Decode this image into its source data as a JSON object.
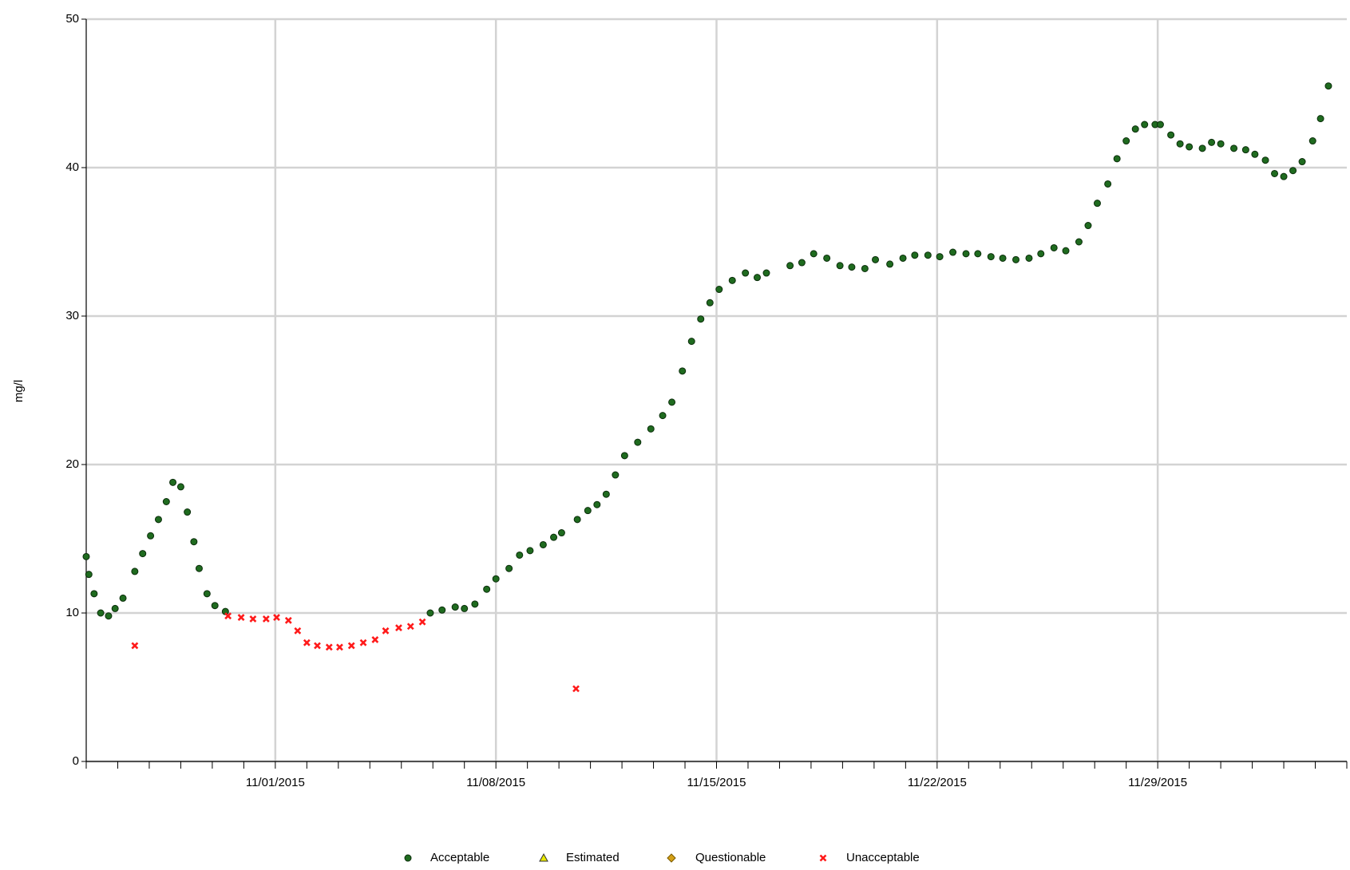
{
  "chart_data": {
    "type": "scatter",
    "y_label": "mg/l",
    "xlim": [
      "2015-10-26T00:00",
      "2015-12-05T00:00"
    ],
    "xticks": [
      {
        "value": "2015-11-01T00:00",
        "label": "11/01/2015"
      },
      {
        "value": "2015-11-08T00:00",
        "label": "11/08/2015"
      },
      {
        "value": "2015-11-15T00:00",
        "label": "11/15/2015"
      },
      {
        "value": "2015-11-22T00:00",
        "label": "11/22/2015"
      },
      {
        "value": "2015-11-29T00:00",
        "label": "11/29/2015"
      }
    ],
    "ylim": [
      0,
      50
    ],
    "yticks": [
      0,
      10,
      20,
      30,
      40,
      50
    ],
    "grid": true,
    "legend": "bottom",
    "series": [
      {
        "name": "Acceptable",
        "color": "#1f6b1f",
        "marker": "circle",
        "x": [
          "2015-10-26T00:00",
          "2015-10-26T02:00",
          "2015-10-26T06:00",
          "2015-10-26T11:00",
          "2015-10-26T17:00",
          "2015-10-26T22:00",
          "2015-10-27T04:00",
          "2015-10-27T13:00",
          "2015-10-27T19:00",
          "2015-10-28T01:00",
          "2015-10-28T07:00",
          "2015-10-28T13:00",
          "2015-10-28T18:00",
          "2015-10-29T00:00",
          "2015-10-29T05:00",
          "2015-10-29T10:00",
          "2015-10-29T14:00",
          "2015-10-29T20:00",
          "2015-10-30T02:00",
          "2015-10-30T10:00",
          "2015-11-05T22:00",
          "2015-11-06T07:00",
          "2015-11-06T17:00",
          "2015-11-07T00:00",
          "2015-11-07T08:00",
          "2015-11-07T17:00",
          "2015-11-08T00:00",
          "2015-11-08T10:00",
          "2015-11-08T18:00",
          "2015-11-09T02:00",
          "2015-11-09T12:00",
          "2015-11-09T20:00",
          "2015-11-10T02:00",
          "2015-11-10T14:00",
          "2015-11-10T22:00",
          "2015-11-11T05:00",
          "2015-11-11T12:00",
          "2015-11-11T19:00",
          "2015-11-12T02:00",
          "2015-11-12T12:00",
          "2015-11-12T22:00",
          "2015-11-13T07:00",
          "2015-11-13T14:00",
          "2015-11-13T22:00",
          "2015-11-14T05:00",
          "2015-11-14T12:00",
          "2015-11-14T19:00",
          "2015-11-15T02:00",
          "2015-11-15T12:00",
          "2015-11-15T22:00",
          "2015-11-16T07:00",
          "2015-11-16T14:00",
          "2015-11-17T08:00",
          "2015-11-17T17:00",
          "2015-11-18T02:00",
          "2015-11-18T12:00",
          "2015-11-18T22:00",
          "2015-11-19T07:00",
          "2015-11-19T17:00",
          "2015-11-20T01:00",
          "2015-11-20T12:00",
          "2015-11-20T22:00",
          "2015-11-21T07:00",
          "2015-11-21T17:00",
          "2015-11-22T02:00",
          "2015-11-22T12:00",
          "2015-11-22T22:00",
          "2015-11-23T07:00",
          "2015-11-23T17:00",
          "2015-11-24T02:00",
          "2015-11-24T12:00",
          "2015-11-24T22:00",
          "2015-11-25T07:00",
          "2015-11-25T17:00",
          "2015-11-26T02:00",
          "2015-11-26T12:00",
          "2015-11-26T19:00",
          "2015-11-27T02:00",
          "2015-11-27T10:00",
          "2015-11-27T17:00",
          "2015-11-28T00:00",
          "2015-11-28T07:00",
          "2015-11-28T14:00",
          "2015-11-28T22:00",
          "2015-11-29T02:00",
          "2015-11-29T10:00",
          "2015-11-29T17:00",
          "2015-11-30T00:00",
          "2015-11-30T10:00",
          "2015-11-30T17:00",
          "2015-12-01T00:00",
          "2015-12-01T10:00",
          "2015-12-01T19:00",
          "2015-12-02T02:00",
          "2015-12-02T10:00",
          "2015-12-02T17:00",
          "2015-12-03T00:00",
          "2015-12-03T07:00",
          "2015-12-03T14:00",
          "2015-12-03T22:00",
          "2015-12-04T04:00",
          "2015-12-04T10:00"
        ],
        "values": [
          13.8,
          12.6,
          11.3,
          10.0,
          9.8,
          10.3,
          11.0,
          12.8,
          14.0,
          15.2,
          16.3,
          17.5,
          18.8,
          18.5,
          16.8,
          14.8,
          13.0,
          11.3,
          10.5,
          10.1,
          10.0,
          10.2,
          10.4,
          10.3,
          10.6,
          11.6,
          12.3,
          13.0,
          13.9,
          14.2,
          14.6,
          15.1,
          15.4,
          16.3,
          16.9,
          17.3,
          18.0,
          19.3,
          20.6,
          21.5,
          22.4,
          23.3,
          24.2,
          26.3,
          28.3,
          29.8,
          30.9,
          31.8,
          32.4,
          32.9,
          32.6,
          32.9,
          33.4,
          33.6,
          34.2,
          33.9,
          33.4,
          33.3,
          33.2,
          33.8,
          33.5,
          33.9,
          34.1,
          34.1,
          34.0,
          34.3,
          34.2,
          34.2,
          34.0,
          33.9,
          33.8,
          33.9,
          34.2,
          34.6,
          34.4,
          35.0,
          36.1,
          37.6,
          38.9,
          40.6,
          41.8,
          42.6,
          42.9,
          42.9,
          42.9,
          42.2,
          41.6,
          41.4,
          41.3,
          41.7,
          41.6,
          41.3,
          41.2,
          40.9,
          40.5,
          39.6,
          39.4,
          39.8,
          40.4,
          41.8,
          43.3,
          45.5
        ]
      },
      {
        "name": "Estimated",
        "color": "#e8e800",
        "marker": "triangle",
        "x": [],
        "values": []
      },
      {
        "name": "Questionable",
        "color": "#d4a017",
        "marker": "diamond",
        "x": [],
        "values": []
      },
      {
        "name": "Unacceptable",
        "color": "#ff1a1a",
        "marker": "cross",
        "x": [
          "2015-10-27T13:00",
          "2015-10-30T12:00",
          "2015-10-30T22:00",
          "2015-10-31T07:00",
          "2015-10-31T17:00",
          "2015-11-01T01:00",
          "2015-11-01T10:00",
          "2015-11-01T17:00",
          "2015-11-02T00:00",
          "2015-11-02T08:00",
          "2015-11-02T17:00",
          "2015-11-03T01:00",
          "2015-11-03T10:00",
          "2015-11-03T19:00",
          "2015-11-04T04:00",
          "2015-11-04T12:00",
          "2015-11-04T22:00",
          "2015-11-05T07:00",
          "2015-11-05T16:00",
          "2015-11-10T13:00"
        ],
        "values": [
          7.8,
          9.8,
          9.7,
          9.6,
          9.6,
          9.7,
          9.5,
          8.8,
          8.0,
          7.8,
          7.7,
          7.7,
          7.8,
          8.0,
          8.2,
          8.8,
          9.0,
          9.1,
          9.4,
          4.9
        ]
      }
    ]
  }
}
